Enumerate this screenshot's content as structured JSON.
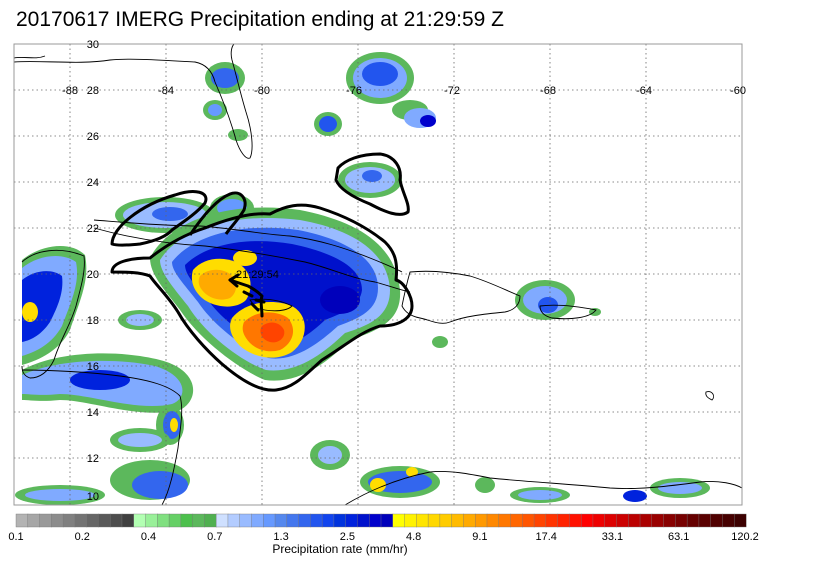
{
  "title": "20170617 IMERG Precipitation ending at 21:29:59 Z",
  "map": {
    "lat_labels": [
      "30",
      "28",
      "26",
      "24",
      "22",
      "20",
      "18",
      "16",
      "14",
      "12",
      "10"
    ],
    "lon_labels": [
      "-88",
      "-84",
      "-80",
      "-76",
      "-72",
      "-68",
      "-64",
      "-60"
    ],
    "storm_time_label": "21:29:54",
    "gridlines": "dotted",
    "land_outline_color": "#000000",
    "frame_color": "#999999"
  },
  "colorbar": {
    "title": "Precipitation rate (mm/hr)",
    "tick_labels": [
      "0.1",
      "0.2",
      "0.4",
      "0.7",
      "1.3",
      "2.5",
      "4.8",
      "9.1",
      "17.4",
      "33.1",
      "63.1",
      "120.2"
    ],
    "colors": [
      "#b3b3b3",
      "#a6a6a6",
      "#999999",
      "#8c8c8c",
      "#808080",
      "#737373",
      "#666666",
      "#595959",
      "#4d4d4d",
      "#404040",
      "#b3ffb3",
      "#99f099",
      "#80e080",
      "#66d066",
      "#4dc04d",
      "#5cb85c",
      "#50b050",
      "#cfe0ff",
      "#b3ccff",
      "#99bbff",
      "#80aaff",
      "#6699ff",
      "#5588ee",
      "#4477ee",
      "#3366ee",
      "#2255ee",
      "#1144ee",
      "#0033dd",
      "#0022dd",
      "#0011cc",
      "#0000cc",
      "#0000bb",
      "#ffff00",
      "#fff200",
      "#ffe500",
      "#ffd800",
      "#ffcc00",
      "#ffbb00",
      "#ffaa00",
      "#ff9900",
      "#ff8800",
      "#ff7700",
      "#ff6600",
      "#ff5500",
      "#ff4400",
      "#ff3300",
      "#ff2200",
      "#ff1100",
      "#ff0000",
      "#ee0000",
      "#dd0000",
      "#cc0000",
      "#bb0000",
      "#aa0000",
      "#990000",
      "#880000",
      "#770000",
      "#660000",
      "#5a0000",
      "#500000",
      "#460000",
      "#3c0000"
    ]
  }
}
